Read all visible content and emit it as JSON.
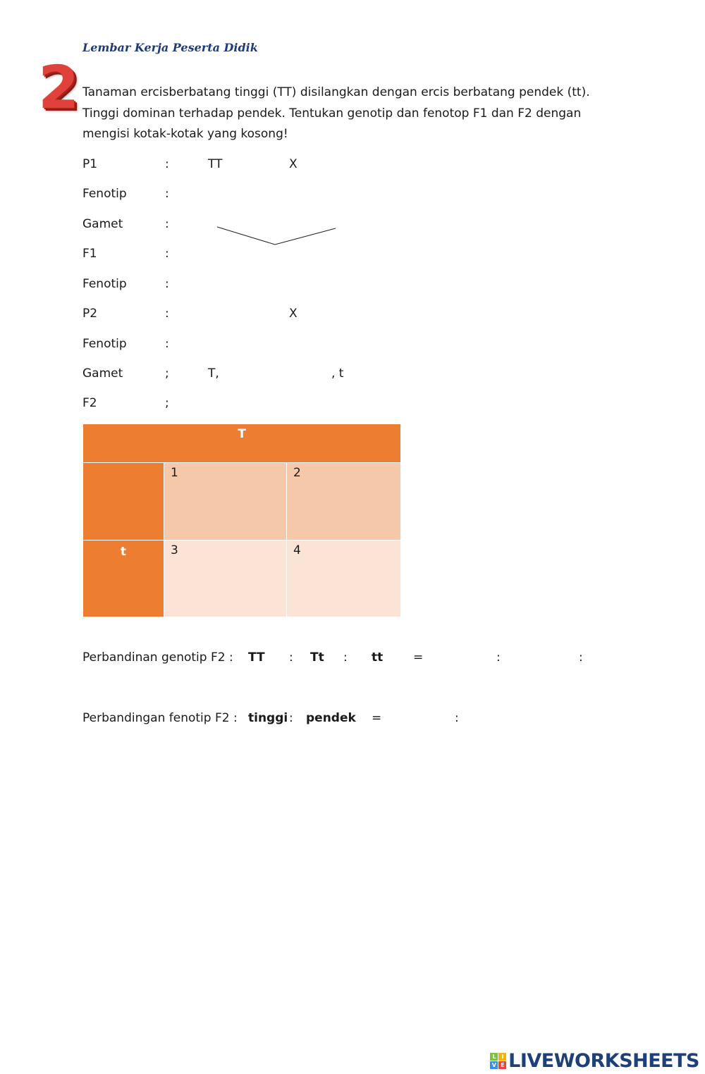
{
  "header": "Lembar Kerja Peserta Didik",
  "number": "2",
  "intro": "Tanaman ercisberbatang tinggi (TT) disilangkan dengan ercis berbatang pendek (tt). Tinggi  dominan terhadap pendek. Tentukan genotip dan fenotop F1 dan F2 dengan mengisi kotak-kotak yang kosong!",
  "rows": [
    {
      "label": "P1",
      "sep": ":",
      "v1": "TT",
      "v2": "X",
      "v3": ""
    },
    {
      "label": "Fenotip",
      "sep": ":",
      "v1": "",
      "v2": "",
      "v3": ""
    },
    {
      "label": "Gamet",
      "sep": ":",
      "v1": "",
      "v2": "",
      "v3": ""
    },
    {
      "label": "F1",
      "sep": ":",
      "v1": "",
      "v2": "",
      "v3": ""
    },
    {
      "label": "Fenotip",
      "sep": ":",
      "v1": "",
      "v2": "",
      "v3": ""
    },
    {
      "label": "P2",
      "sep": ":",
      "v1": "",
      "v2": "X",
      "v3": ""
    },
    {
      "label": "Fenotip",
      "sep": ":",
      "v1": "",
      "v2": "",
      "v3": ""
    },
    {
      "label": "Gamet",
      "sep": ";",
      "v1": "T,",
      "v2": "",
      "v3": ", t"
    },
    {
      "label": "F2",
      "sep": ";",
      "v1": "",
      "v2": "",
      "v3": ""
    }
  ],
  "punnett": {
    "top_header": "T",
    "left_header_2": "t",
    "cells": [
      "1",
      "2",
      "3",
      "4"
    ],
    "colors": {
      "header": "#ed7d31",
      "row1": "#f6c8aa",
      "row2": "#fbe4d6"
    }
  },
  "genotype_ratio": {
    "label": "Perbandinan genotip F2 :",
    "a": "TT",
    "c1": ":",
    "b": "Tt",
    "c2": ":",
    "c": "tt",
    "eq": "=",
    "s1": ":",
    "s2": ":"
  },
  "phenotype_ratio": {
    "label": "Perbandingan fenotip F2 :",
    "a": "tinggi",
    "c1": ":",
    "b": "pendek",
    "eq": "=",
    "s1": ":"
  },
  "logo": {
    "text": "LIVEWORKSHEETS",
    "letters": [
      "L",
      "I",
      "V",
      "E"
    ]
  }
}
